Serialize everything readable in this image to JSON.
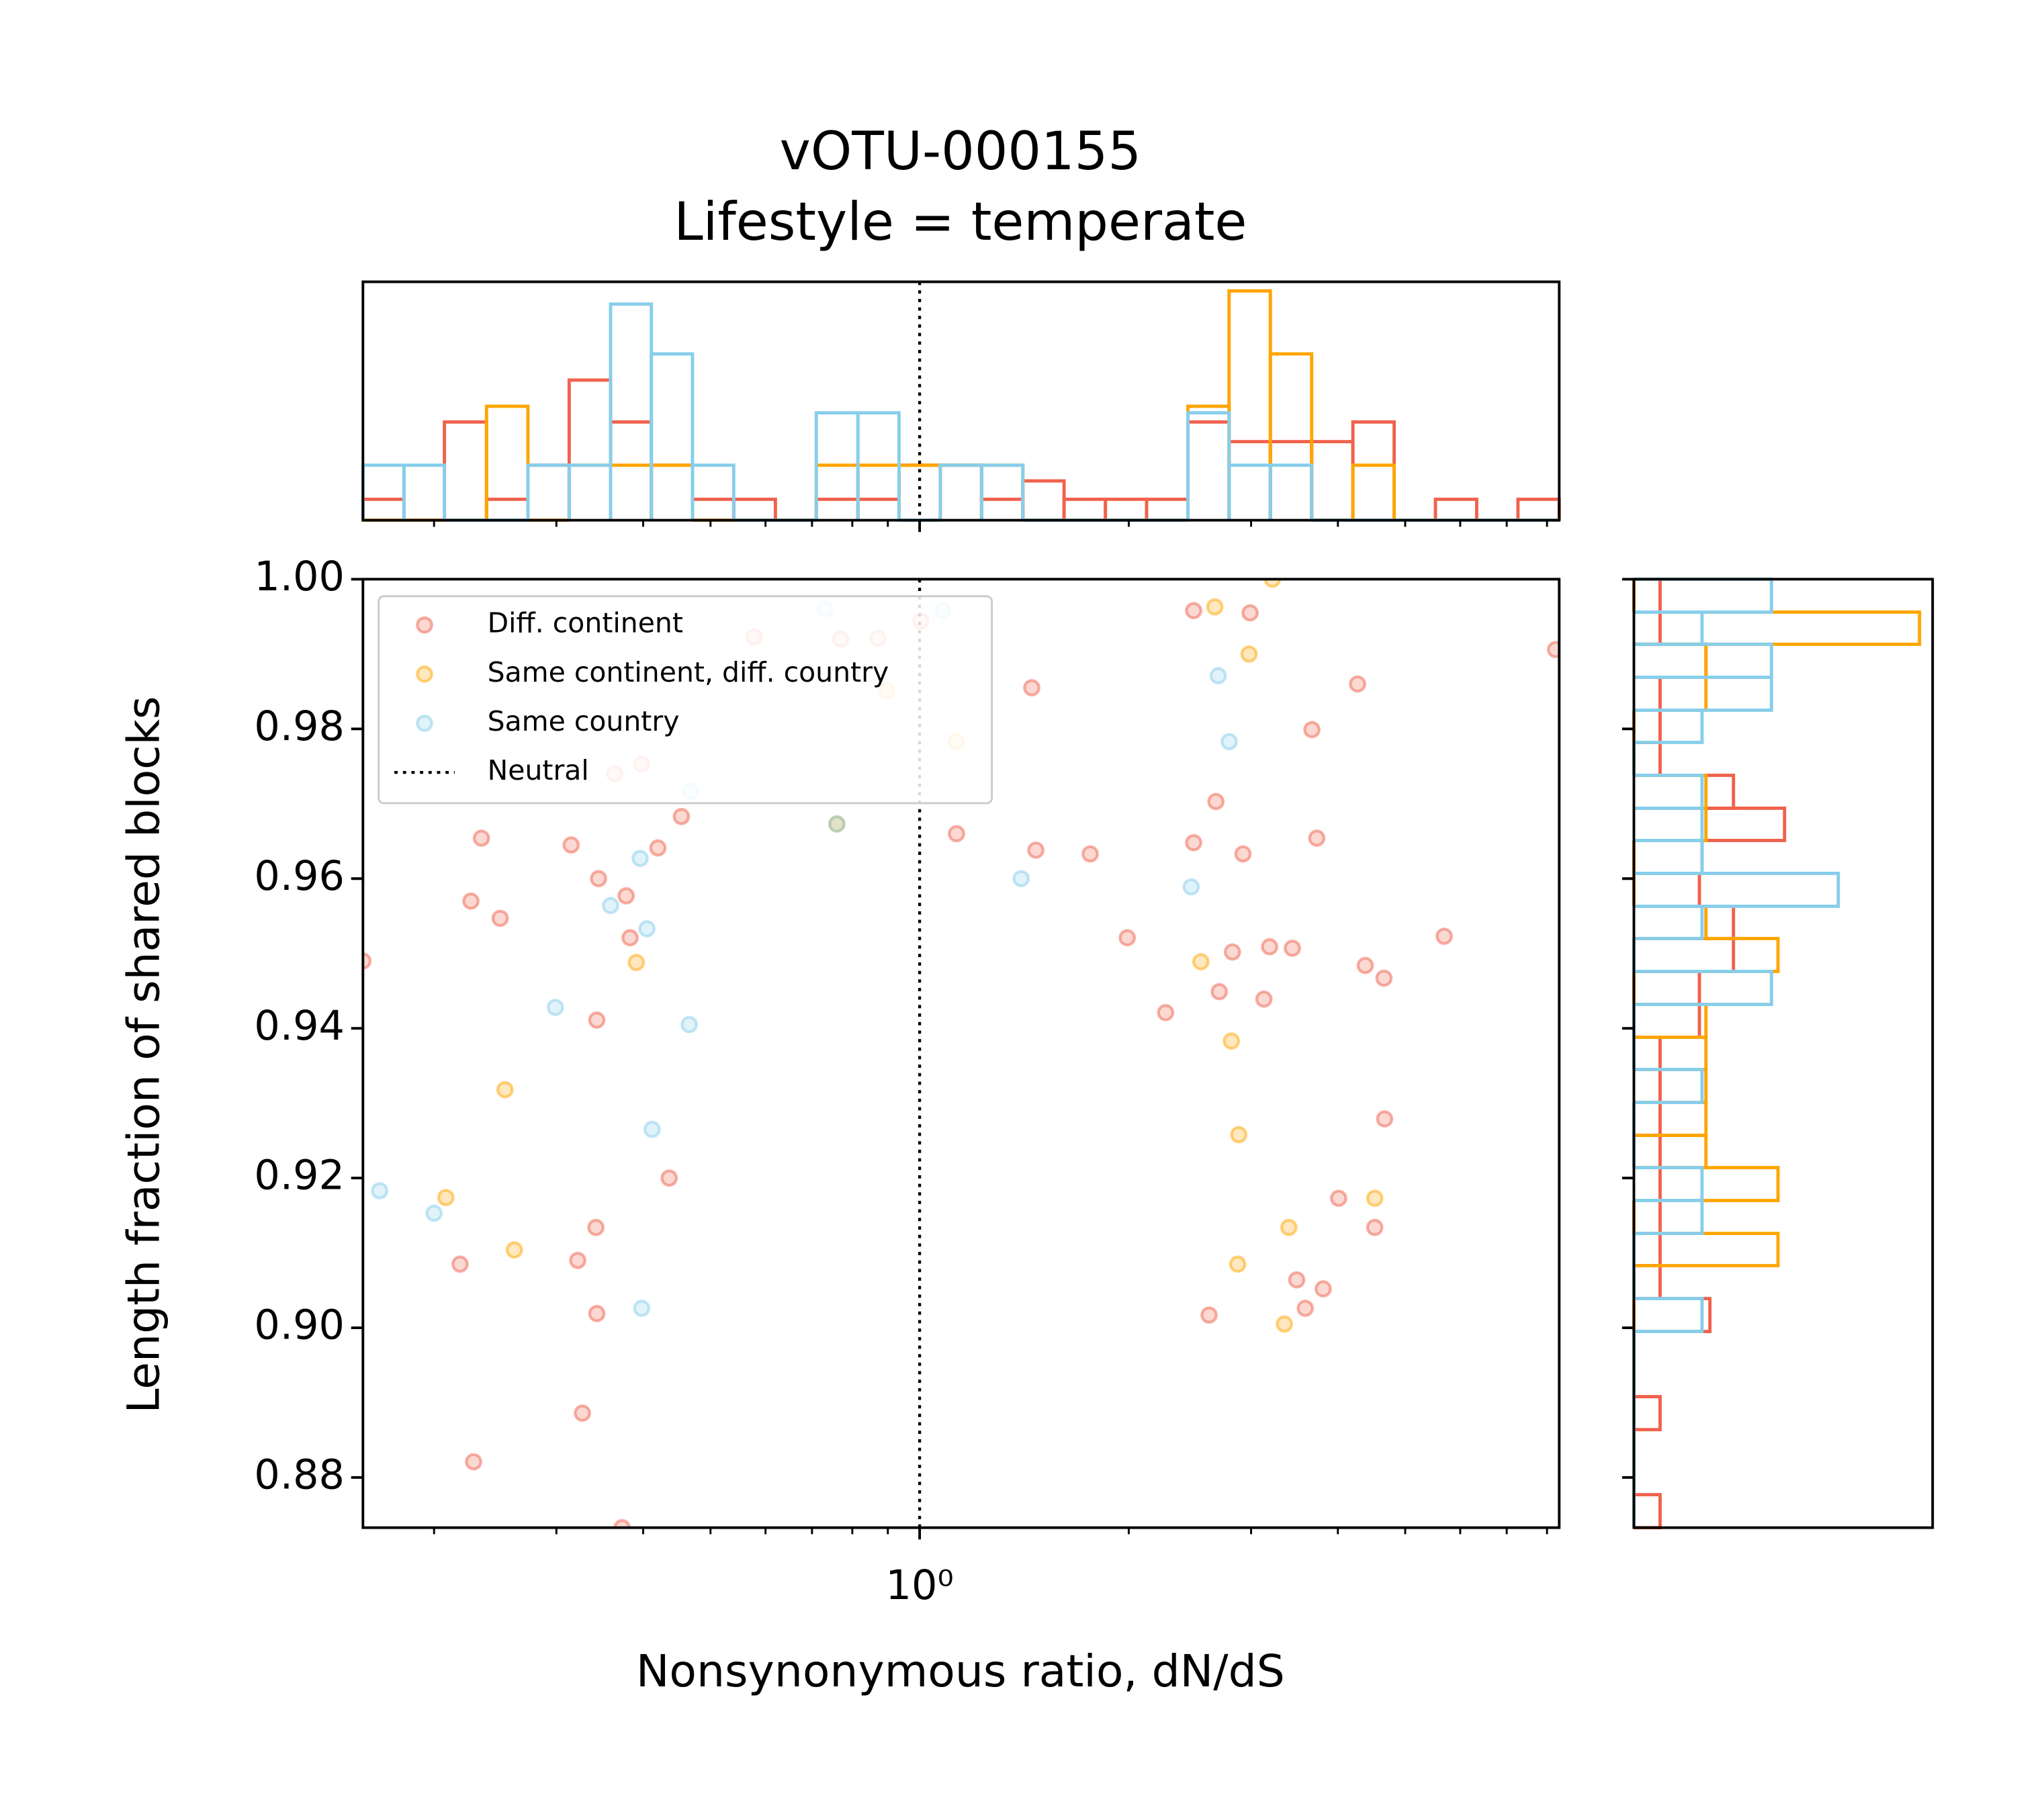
{
  "chart_data": [
    {
      "type": "scatter",
      "title": "vOTU-000155",
      "subtitle": "Lifestyle = temperate",
      "xlabel": "Nonsynonymous ratio, dN/dS",
      "ylabel": "Length fraction of shared blocks",
      "xscale": "log",
      "xlim": [
        0.158,
        8.33
      ],
      "ylim": [
        0.8733,
        1.0
      ],
      "xticks": [
        {
          "value": 1,
          "label": "10⁰"
        }
      ],
      "xminorticks": [
        0.2,
        0.3,
        0.4,
        0.5,
        0.6,
        0.7,
        0.8,
        0.9,
        2,
        3,
        4,
        5,
        6,
        7,
        8
      ],
      "yticks": [
        0.88,
        {
          "value": 0.9,
          "label": "0.90"
        },
        0.92,
        0.94,
        0.96,
        0.98,
        {
          "value": 1.0,
          "label": "1.00"
        }
      ],
      "legend": "upper left",
      "neutral": {
        "name": "Neutral",
        "x": 1,
        "color": "#000000"
      },
      "series": [
        {
          "name": "Diff. continent",
          "color": "#f0624d",
          "x": [
            0.158,
            0.234,
            0.226,
            0.249,
            0.315,
            0.345,
            0.378,
            0.383,
            0.42,
            0.454,
            0.343,
            0.322,
            0.342,
            0.218,
            0.343,
            0.436,
            0.327,
            0.228,
            0.373,
            0.398,
            0.364,
            0.578,
            0.77,
            0.871,
            1.004,
            1.13,
            1.45,
            1.47,
            1.76,
            1.99,
            2.26,
            2.48,
            2.48,
            2.67,
            2.99,
            2.92,
            2.82,
            3.19,
            3.44,
            2.7,
            3.13,
            3.67,
            3.73,
            4.27,
            4.01,
            4.52,
            4.38,
            4.66,
            4.67,
            3.49,
            3.81,
            3.59,
            2.61,
            5.69,
            8.23
          ],
          "values": [
            0.949,
            0.9654,
            0.957,
            0.9547,
            0.9645,
            0.96,
            0.9577,
            0.9521,
            0.9641,
            0.9683,
            0.9411,
            0.909,
            0.9134,
            0.9085,
            0.9019,
            0.92,
            0.8886,
            0.8821,
            0.8733,
            0.9753,
            0.974,
            0.9923,
            0.992,
            0.9921,
            0.9944,
            0.966,
            0.9855,
            0.9638,
            0.9633,
            0.9521,
            0.9421,
            0.9958,
            0.9648,
            0.9703,
            0.9955,
            0.9633,
            0.9502,
            0.9509,
            0.9507,
            0.9449,
            0.9439,
            0.9799,
            0.9654,
            0.986,
            0.9173,
            0.9134,
            0.9484,
            0.9467,
            0.9279,
            0.9064,
            0.9052,
            0.9026,
            0.9017,
            0.9523,
            0.9906
          ]
        },
        {
          "name": "Same continent, diff. country",
          "color": "#ffa500",
          "x": [
            0.76,
            0.897,
            1.13,
            0.391,
            0.253,
            0.208,
            0.261,
            2.66,
            3.22,
            2.98,
            2.54,
            2.81,
            2.88,
            2.87,
            3.4,
            3.35,
            4.52
          ],
          "values": [
            0.9673,
            0.9851,
            0.9783,
            0.9488,
            0.9318,
            0.9174,
            0.9104,
            0.9963,
            1.0,
            0.99,
            0.9489,
            0.9383,
            0.9258,
            0.9085,
            0.9134,
            0.9005,
            0.9173
          ]
        },
        {
          "name": "Same country",
          "color": "#87ceeb",
          "x": [
            0.167,
            0.2,
            0.299,
            0.359,
            0.396,
            0.405,
            0.466,
            0.412,
            0.398,
            0.468,
            0.731,
            1.08,
            1.4,
            2.46,
            2.69,
            2.79,
            0.76
          ],
          "values": [
            0.9183,
            0.9153,
            0.9428,
            0.9564,
            0.9627,
            0.9533,
            0.9405,
            0.9265,
            0.9026,
            0.9717,
            0.996,
            0.9958,
            0.96,
            0.9589,
            0.9871,
            0.9783,
            0.9673
          ]
        }
      ]
    },
    {
      "type": "histogram",
      "orientation": "vertical",
      "xscale": "log",
      "ylim": [
        0,
        1.82
      ],
      "bins": [
        0.158,
        0.181,
        0.207,
        0.238,
        0.273,
        0.313,
        0.359,
        0.411,
        0.471,
        0.54,
        0.62,
        0.71,
        0.815,
        0.934,
        1.071,
        1.228,
        1.408,
        1.614,
        1.851,
        2.122,
        2.433,
        2.789,
        3.198,
        3.667,
        4.204,
        4.82,
        5.527,
        6.337,
        7.266,
        8.33
      ],
      "series": [
        {
          "color": "#f0624d",
          "values": [
            0.16,
            0,
            0.75,
            0.16,
            0.42,
            1.07,
            0.75,
            0.42,
            0.16,
            0.16,
            0,
            0.16,
            0.16,
            0.42,
            0.42,
            0.16,
            0.3,
            0.16,
            0.16,
            0.16,
            0.75,
            0.6,
            0.6,
            0.6,
            0.75,
            0,
            0.16,
            0,
            0.16
          ]
        },
        {
          "color": "#ffa500",
          "values": [
            0,
            0,
            0,
            0.87,
            0,
            0.42,
            0.42,
            0.42,
            0,
            0,
            0,
            0.42,
            0.42,
            0.42,
            0.42,
            0.42,
            0,
            0,
            0,
            0,
            0.87,
            1.75,
            1.27,
            0,
            0.42,
            0,
            0,
            0,
            0
          ]
        },
        {
          "color": "#87ceeb",
          "values": [
            0.42,
            0.42,
            0,
            0,
            0.42,
            0.42,
            1.65,
            1.27,
            0.42,
            0,
            0,
            0.82,
            0.82,
            0,
            0.42,
            0.42,
            0,
            0,
            0,
            0,
            0.82,
            0.42,
            0.42,
            0,
            0,
            0,
            0,
            0,
            0
          ]
        }
      ]
    },
    {
      "type": "histogram",
      "orientation": "horizontal",
      "xlim": [
        0,
        2.28
      ],
      "bins": [
        0.8733,
        0.8777,
        0.882,
        0.8864,
        0.8908,
        0.8951,
        0.8995,
        0.9039,
        0.9083,
        0.9126,
        0.917,
        0.9214,
        0.9257,
        0.9301,
        0.9345,
        0.9388,
        0.9432,
        0.9476,
        0.952,
        0.9563,
        0.9607,
        0.9651,
        0.9694,
        0.9738,
        0.9782,
        0.9825,
        0.9869,
        0.9913,
        0.9956,
        1.0
      ],
      "series": [
        {
          "color": "#f0624d",
          "values": [
            0.2,
            0,
            0,
            0.2,
            0,
            0,
            0.58,
            0.2,
            0.2,
            0.2,
            0.2,
            0.2,
            0.2,
            0.2,
            0.2,
            0.5,
            0.5,
            0.76,
            0.76,
            0.5,
            0.52,
            1.15,
            0.76,
            0.2,
            0.2,
            0.2,
            0.55,
            0.2,
            0.2
          ]
        },
        {
          "color": "#ffa500",
          "values": [
            0,
            0,
            0,
            0,
            0,
            0,
            0,
            0,
            1.1,
            0,
            1.1,
            0.55,
            0.55,
            0.55,
            0.55,
            0.55,
            0,
            1.1,
            0.55,
            0,
            0,
            0.55,
            0.55,
            0,
            0,
            0.55,
            0.55,
            2.18,
            0
          ]
        },
        {
          "color": "#87ceeb",
          "values": [
            0,
            0,
            0,
            0,
            0,
            0,
            0.52,
            0,
            0,
            0.52,
            0.52,
            0,
            0,
            0.52,
            0,
            0,
            1.05,
            0,
            0.52,
            1.56,
            0.52,
            0.52,
            0.52,
            0,
            0.52,
            1.05,
            1.05,
            0.52,
            1.05
          ]
        }
      ]
    }
  ]
}
